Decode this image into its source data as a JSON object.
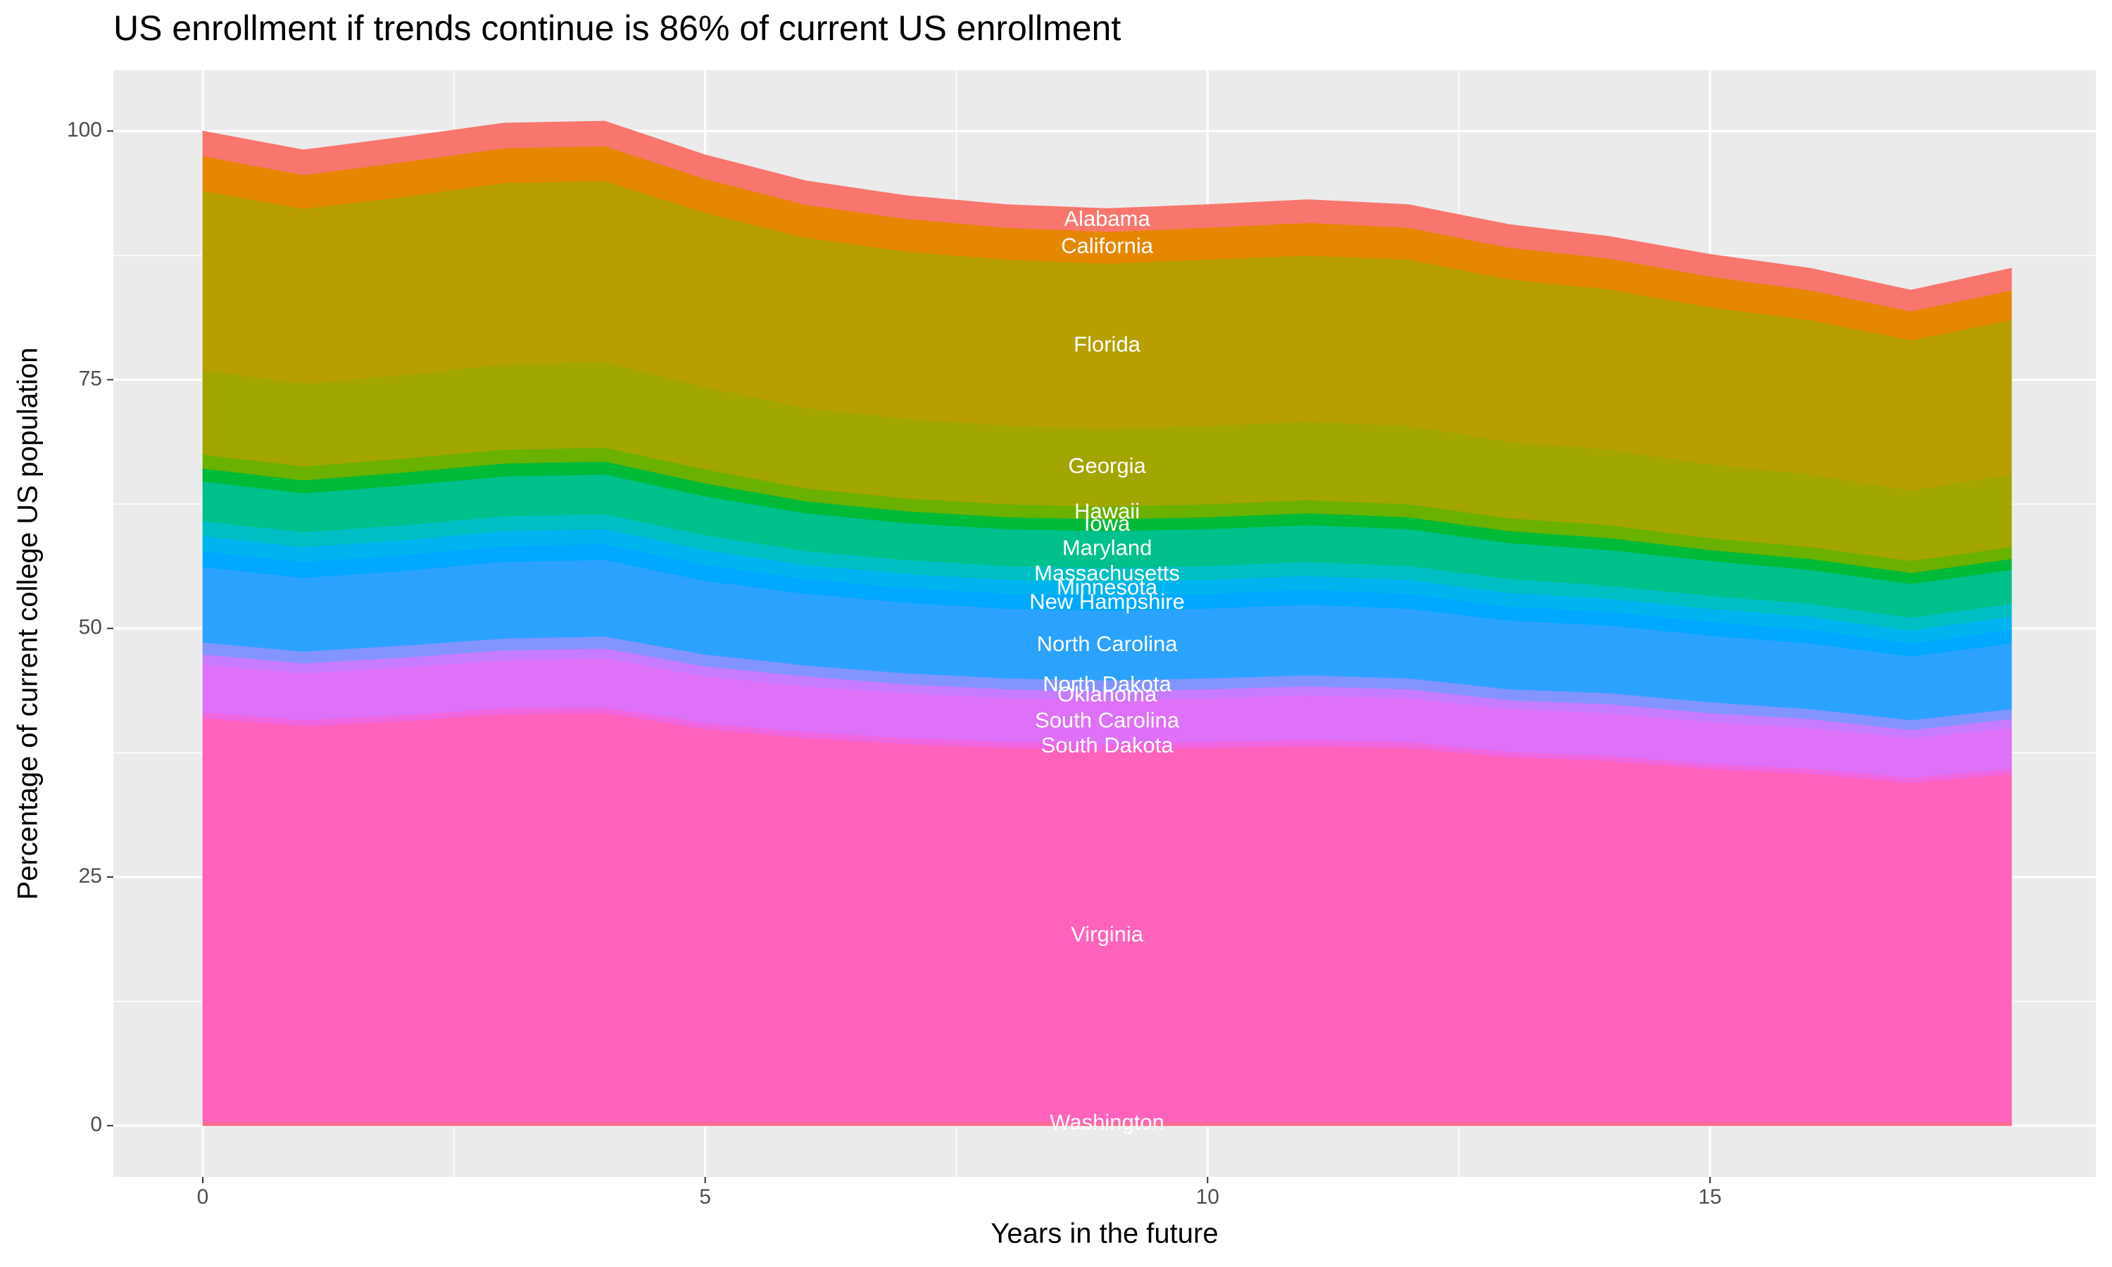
{
  "chart_data": {
    "type": "stacked_area",
    "title": "US enrollment if trends continue is 86% of current US enrollment",
    "x_label": "Years in the future",
    "y_label": "Percentage of current college US population",
    "x": [
      0,
      1,
      2,
      3,
      4,
      5,
      6,
      7,
      8,
      9,
      10,
      11,
      12,
      13,
      14,
      15,
      16,
      17,
      18
    ],
    "xlim": [
      -0.89,
      18.84
    ],
    "xticks": [
      0,
      5,
      10,
      15
    ],
    "ylim": [
      -5.15,
      106.1
    ],
    "yticks": [
      0,
      25,
      50,
      75,
      100
    ],
    "grid": true,
    "series": [
      {
        "name": "Washington",
        "color": "#FF6C91",
        "values": [
          0.4,
          0.4,
          0.4,
          0.4,
          0.4,
          0.4,
          0.4,
          0.4,
          0.4,
          0.4,
          0.4,
          0.4,
          0.4,
          0.4,
          0.4,
          0.4,
          0.4,
          0.4,
          0.4
        ]
      },
      {
        "name": "Virginia",
        "color": "#FF62BC",
        "values": [
          40.6,
          39.8,
          40.3,
          41.0,
          41.1,
          39.5,
          38.6,
          38.0,
          37.6,
          37.4,
          37.6,
          37.8,
          37.6,
          36.7,
          36.3,
          35.5,
          35.0,
          34.1,
          35.0
        ]
      },
      {
        "name": "South Dakota",
        "color": "#F066E0",
        "values": [
          0.6,
          0.6,
          0.6,
          0.6,
          0.6,
          0.6,
          0.6,
          0.6,
          0.6,
          0.6,
          0.6,
          0.6,
          0.6,
          0.5,
          0.5,
          0.5,
          0.5,
          0.5,
          0.5
        ]
      },
      {
        "name": "South Carolina",
        "color": "#DF70F8",
        "values": [
          4.8,
          4.7,
          4.8,
          4.8,
          4.9,
          4.7,
          4.6,
          4.5,
          4.4,
          4.4,
          4.4,
          4.5,
          4.4,
          4.3,
          4.3,
          4.2,
          4.1,
          4.0,
          4.1
        ]
      },
      {
        "name": "Oklahoma",
        "color": "#C77CFF",
        "values": [
          1.0,
          1.0,
          1.0,
          1.0,
          1.0,
          1.0,
          1.0,
          0.9,
          0.9,
          0.9,
          0.9,
          0.9,
          0.9,
          0.9,
          0.9,
          0.9,
          0.9,
          0.8,
          0.9
        ]
      },
      {
        "name": "North Dakota",
        "color": "#8494FF",
        "values": [
          1.2,
          1.2,
          1.2,
          1.2,
          1.2,
          1.2,
          1.1,
          1.1,
          1.1,
          1.1,
          1.1,
          1.1,
          1.1,
          1.1,
          1.1,
          1.1,
          1.0,
          1.0,
          1.0
        ]
      },
      {
        "name": "North Carolina",
        "color": "#2CA2FF",
        "values": [
          7.6,
          7.4,
          7.5,
          7.7,
          7.7,
          7.4,
          7.2,
          7.1,
          7.0,
          7.0,
          7.0,
          7.1,
          7.0,
          6.9,
          6.8,
          6.7,
          6.6,
          6.4,
          6.6
        ]
      },
      {
        "name": "New Hampshire",
        "color": "#00A9FF",
        "values": [
          1.6,
          1.6,
          1.6,
          1.6,
          1.6,
          1.6,
          1.5,
          1.5,
          1.5,
          1.5,
          1.5,
          1.5,
          1.5,
          1.4,
          1.4,
          1.4,
          1.4,
          1.3,
          1.4
        ]
      },
      {
        "name": "Minnesota",
        "color": "#00B4F0",
        "values": [
          1.5,
          1.5,
          1.5,
          1.5,
          1.5,
          1.5,
          1.4,
          1.4,
          1.4,
          1.4,
          1.4,
          1.4,
          1.4,
          1.4,
          1.3,
          1.3,
          1.3,
          1.3,
          1.3
        ]
      },
      {
        "name": "Massachusetts",
        "color": "#00BFC4",
        "values": [
          1.5,
          1.5,
          1.5,
          1.5,
          1.5,
          1.5,
          1.4,
          1.4,
          1.4,
          1.4,
          1.4,
          1.4,
          1.4,
          1.4,
          1.3,
          1.3,
          1.3,
          1.3,
          1.3
        ]
      },
      {
        "name": "Maryland",
        "color": "#00C08B",
        "values": [
          4.0,
          3.9,
          4.0,
          4.0,
          4.0,
          3.9,
          3.8,
          3.7,
          3.7,
          3.7,
          3.7,
          3.7,
          3.7,
          3.6,
          3.6,
          3.5,
          3.4,
          3.4,
          3.4
        ]
      },
      {
        "name": "Iowa",
        "color": "#00BA38",
        "values": [
          1.3,
          1.3,
          1.3,
          1.3,
          1.3,
          1.3,
          1.2,
          1.2,
          1.2,
          1.2,
          1.2,
          1.2,
          1.2,
          1.2,
          1.2,
          1.1,
          1.1,
          1.1,
          1.1
        ]
      },
      {
        "name": "Hawaii",
        "color": "#6BB100",
        "values": [
          1.4,
          1.4,
          1.4,
          1.4,
          1.4,
          1.4,
          1.3,
          1.3,
          1.3,
          1.3,
          1.3,
          1.3,
          1.3,
          1.3,
          1.3,
          1.2,
          1.2,
          1.2,
          1.2
        ]
      },
      {
        "name": "Georgia",
        "color": "#A3A500",
        "values": [
          8.5,
          8.3,
          8.4,
          8.6,
          8.6,
          8.3,
          8.1,
          8.0,
          7.9,
          7.8,
          7.9,
          7.9,
          7.9,
          7.7,
          7.6,
          7.4,
          7.3,
          7.1,
          7.3
        ]
      },
      {
        "name": "Florida",
        "color": "#B79F00",
        "values": [
          18.0,
          17.6,
          17.9,
          18.2,
          18.2,
          17.5,
          17.1,
          16.8,
          16.7,
          16.6,
          16.7,
          16.7,
          16.7,
          16.3,
          16.1,
          15.8,
          15.5,
          15.1,
          15.5
        ]
      },
      {
        "name": "California",
        "color": "#E58700",
        "values": [
          3.5,
          3.4,
          3.5,
          3.5,
          3.5,
          3.4,
          3.3,
          3.3,
          3.2,
          3.2,
          3.2,
          3.3,
          3.2,
          3.2,
          3.1,
          3.1,
          3.0,
          2.9,
          3.0
        ]
      },
      {
        "name": "Alabama",
        "color": "#F8766D",
        "values": [
          2.5,
          2.5,
          2.5,
          2.5,
          2.5,
          2.4,
          2.4,
          2.3,
          2.3,
          2.3,
          2.3,
          2.3,
          2.3,
          2.3,
          2.2,
          2.2,
          2.2,
          2.1,
          2.2
        ]
      }
    ]
  }
}
